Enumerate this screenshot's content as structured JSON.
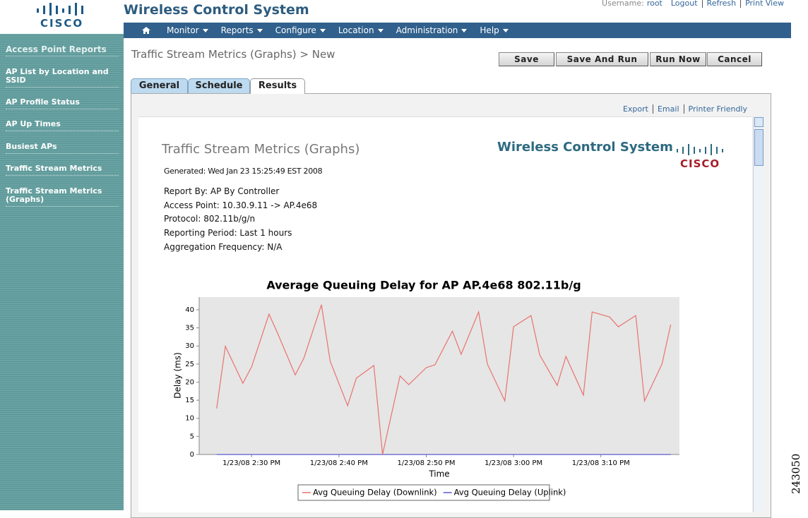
{
  "header": {
    "logo": "CISCO",
    "app_title": "Wireless Control System",
    "user_label": "Username:",
    "user": "root",
    "links": [
      "Logout",
      "Refresh",
      "Print View"
    ]
  },
  "nav": [
    "Monitor",
    "Reports",
    "Configure",
    "Location",
    "Administration",
    "Help"
  ],
  "sidebar": {
    "heading": "Access Point Reports",
    "items": [
      "AP List by Location and SSID",
      "AP Profile Status",
      "AP Up Times",
      "Busiest APs",
      "Traffic Stream Metrics",
      "Traffic Stream Metrics (Graphs)"
    ]
  },
  "page_title": "Traffic Stream Metrics (Graphs) > New",
  "buttons": [
    "Save",
    "Save And Run",
    "Run Now",
    "Cancel"
  ],
  "tabs": [
    "General",
    "Schedule",
    "Results"
  ],
  "report_links": [
    "Export",
    "Email",
    "Printer Friendly"
  ],
  "report": {
    "title": "Traffic Stream Metrics (Graphs)",
    "brand": "Wireless Control System",
    "logo": "CISCO",
    "generated": "Generated: Wed Jan 23 15:25:49 EST 2008",
    "details": [
      "Report By: AP By Controller",
      "Access Point: 10.30.9.11 -> AP.4e68",
      "Protocol: 802.11b/g/n",
      "Reporting Period: Last 1 hours",
      "Aggregation Frequency: N/A"
    ]
  },
  "chart_data": {
    "type": "line",
    "title": "Average Queuing Delay for AP AP.4e68 802.11b/g",
    "x_label": "Time",
    "y_label": "Delay (ms)",
    "x": [
      "1/23/08 2:26 PM",
      "1/23/08 2:27 PM",
      "1/23/08 2:29 PM",
      "1/23/08 2:30 PM",
      "1/23/08 2:32 PM",
      "1/23/08 2:33 PM",
      "1/23/08 2:35 PM",
      "1/23/08 2:36 PM",
      "1/23/08 2:38 PM",
      "1/23/08 2:39 PM",
      "1/23/08 2:41 PM",
      "1/23/08 2:42 PM",
      "1/23/08 2:44 PM",
      "1/23/08 2:45 PM",
      "1/23/08 2:47 PM",
      "1/23/08 2:48 PM",
      "1/23/08 2:50 PM",
      "1/23/08 2:51 PM",
      "1/23/08 2:53 PM",
      "1/23/08 2:54 PM",
      "1/23/08 2:56 PM",
      "1/23/08 2:57 PM",
      "1/23/08 2:59 PM",
      "1/23/08 3:00 PM",
      "1/23/08 3:02 PM",
      "1/23/08 3:03 PM",
      "1/23/08 3:05 PM",
      "1/23/08 3:06 PM",
      "1/23/08 3:08 PM",
      "1/23/08 3:09 PM",
      "1/23/08 3:11 PM",
      "1/23/08 3:12 PM",
      "1/23/08 3:14 PM",
      "1/23/08 3:15 PM",
      "1/23/08 3:17 PM",
      "1/23/08 3:18 PM"
    ],
    "series": [
      {
        "name": "Avg Queuing Delay (Downlink)",
        "color": "#e8736e",
        "values": [
          12.7,
          29.9,
          19.7,
          24.2,
          38.8,
          33.4,
          22.0,
          26.7,
          41.4,
          25.8,
          13.5,
          21.1,
          24.6,
          0,
          21.7,
          19.3,
          24.0,
          24.8,
          34.1,
          27.7,
          39.4,
          25.0,
          14.8,
          35.3,
          38.4,
          27.5,
          19.1,
          27.1,
          16.4,
          39.4,
          38.0,
          35.3,
          38.4,
          14.8,
          25.0,
          35.9
        ]
      },
      {
        "name": "Avg Queuing Delay (Uplink)",
        "color": "#5a5ad0",
        "values": [
          0,
          0,
          0,
          0,
          0,
          0,
          0,
          0,
          0,
          0,
          0,
          0,
          0,
          0,
          0,
          0,
          0,
          0,
          0,
          0,
          0,
          0,
          0,
          0,
          0,
          0,
          0,
          0,
          0,
          0,
          0,
          0,
          0,
          0,
          0,
          0
        ]
      }
    ],
    "xlim": [
      "1/23/08 2:24 PM",
      "1/23/08 3:19 PM"
    ],
    "xticks": [
      "1/23/08 2:30 PM",
      "1/23/08 2:40 PM",
      "1/23/08 2:50 PM",
      "1/23/08 3:00 PM",
      "1/23/08 3:10 PM"
    ],
    "ylim": [
      0,
      43.5
    ],
    "yticks": [
      0,
      5,
      10,
      15,
      20,
      25,
      30,
      35,
      40
    ],
    "grid": false,
    "legend": "bottom"
  },
  "figure_id": "243050"
}
